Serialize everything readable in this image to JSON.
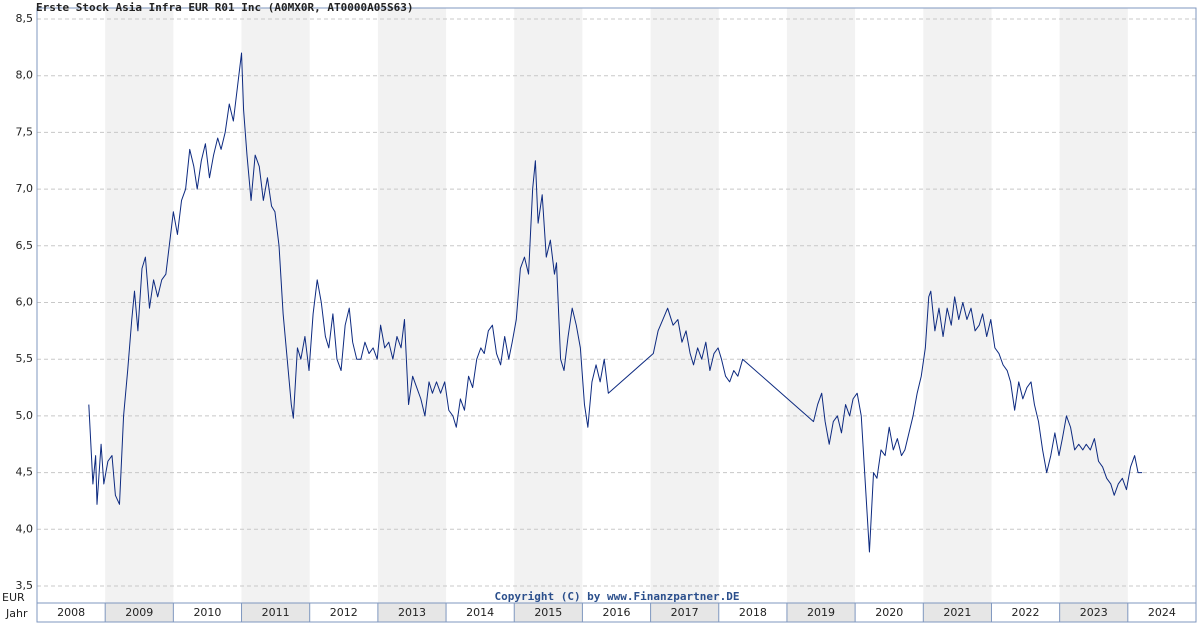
{
  "chart_data": {
    "type": "line",
    "title": "Erste Stock Asia Infra EUR R01 Inc (A0MX0R, AT0000A05S63)",
    "annotation": "Copyright (C) by www.Finanzpartner.DE",
    "ylabel": "EUR",
    "xlabel": "Jahr",
    "color": "#0d2a80",
    "grid": true,
    "ylim": [
      3.5,
      8.5
    ],
    "yticks": [
      {
        "value": 3.5,
        "label": "3,5"
      },
      {
        "value": 4,
        "label": "4,0"
      },
      {
        "value": 4.5,
        "label": "4,5"
      },
      {
        "value": 5,
        "label": "5,0"
      },
      {
        "value": 5.5,
        "label": "5,5"
      },
      {
        "value": 6,
        "label": "6,0"
      },
      {
        "value": 6.5,
        "label": "6,5"
      },
      {
        "value": 7,
        "label": "7,0"
      },
      {
        "value": 7.5,
        "label": "7,5"
      },
      {
        "value": 8,
        "label": "8,0"
      },
      {
        "value": 8.5,
        "label": "8,5"
      }
    ],
    "xlim": [
      2008,
      2025
    ],
    "xticks": [
      2008,
      2009,
      2010,
      2011,
      2012,
      2013,
      2014,
      2015,
      2016,
      2017,
      2018,
      2019,
      2020,
      2021,
      2022,
      2023,
      2024
    ],
    "x": [
      2008.76,
      2008.82,
      2008.86,
      2008.88,
      2008.94,
      2008.98,
      2009.04,
      2009.1,
      2009.15,
      2009.21,
      2009.27,
      2009.33,
      2009.39,
      2009.43,
      2009.48,
      2009.54,
      2009.59,
      2009.65,
      2009.71,
      2009.77,
      2009.83,
      2009.89,
      2009.94,
      2010.0,
      2010.06,
      2010.12,
      2010.18,
      2010.24,
      2010.3,
      2010.35,
      2010.41,
      2010.47,
      2010.53,
      2010.59,
      2010.65,
      2010.7,
      2010.76,
      2010.82,
      2010.88,
      2010.94,
      2011.0,
      2011.03,
      2011.08,
      2011.14,
      2011.2,
      2011.26,
      2011.32,
      2011.38,
      2011.44,
      2011.49,
      2011.55,
      2011.61,
      2011.67,
      2011.73,
      2011.76,
      2011.82,
      2011.87,
      2011.93,
      2011.99,
      2012.05,
      2012.11,
      2012.17,
      2012.23,
      2012.28,
      2012.34,
      2012.4,
      2012.46,
      2012.52,
      2012.58,
      2012.63,
      2012.69,
      2012.75,
      2012.81,
      2012.87,
      2012.93,
      2012.99,
      2013.04,
      2013.1,
      2013.16,
      2013.22,
      2013.28,
      2013.34,
      2013.39,
      2013.45,
      2013.51,
      2013.57,
      2013.63,
      2013.69,
      2013.75,
      2013.8,
      2013.86,
      2013.92,
      2013.98,
      2014.04,
      2014.1,
      2014.15,
      2014.21,
      2014.27,
      2014.33,
      2014.39,
      2014.45,
      2014.51,
      2014.56,
      2014.62,
      2014.68,
      2014.74,
      2014.8,
      2014.86,
      2014.92,
      2014.97,
      2015.03,
      2015.09,
      2015.15,
      2015.21,
      2015.27,
      2015.31,
      2015.35,
      2015.41,
      2015.47,
      2015.53,
      2015.59,
      2015.62,
      2015.68,
      2015.73,
      2015.79,
      2015.85,
      2015.91,
      2015.97,
      2016.03,
      2016.08,
      2016.14,
      2016.2,
      2016.26,
      2016.32,
      2016.38,
      2017.04,
      2017.11,
      2017.18,
      2017.25,
      2017.33,
      2017.4,
      2017.46,
      2017.52,
      2017.58,
      2017.63,
      2017.69,
      2017.75,
      2017.81,
      2017.87,
      2017.93,
      2017.99,
      2018.04,
      2018.1,
      2018.16,
      2018.22,
      2018.28,
      2018.35,
      2019.39,
      2019.45,
      2019.51,
      2019.56,
      2019.62,
      2019.68,
      2019.74,
      2019.8,
      2019.86,
      2019.92,
      2019.97,
      2020.03,
      2020.09,
      2020.15,
      2020.21,
      2020.27,
      2020.32,
      2020.38,
      2020.44,
      2020.5,
      2020.56,
      2020.62,
      2020.68,
      2020.73,
      2020.79,
      2020.85,
      2020.91,
      2020.97,
      2021.03,
      2021.08,
      2021.11,
      2021.17,
      2021.23,
      2021.29,
      2021.35,
      2021.41,
      2021.46,
      2021.52,
      2021.58,
      2021.64,
      2021.7,
      2021.76,
      2021.82,
      2021.87,
      2021.93,
      2021.99,
      2022.05,
      2022.11,
      2022.17,
      2022.23,
      2022.28,
      2022.34,
      2022.4,
      2022.46,
      2022.52,
      2022.58,
      2022.63,
      2022.69,
      2022.75,
      2022.81,
      2022.87,
      2022.93,
      2022.99,
      2023.04,
      2023.1,
      2023.16,
      2023.22,
      2023.28,
      2023.34,
      2023.39,
      2023.45,
      2023.51,
      2023.57,
      2023.63,
      2023.69,
      2023.75,
      2023.8,
      2023.86,
      2023.92,
      2023.98,
      2024.04,
      2024.1,
      2024.15,
      2024.21
    ],
    "values": [
      5.1,
      4.4,
      4.65,
      4.22,
      4.75,
      4.4,
      4.6,
      4.65,
      4.3,
      4.22,
      5.0,
      5.4,
      5.85,
      6.1,
      5.75,
      6.3,
      6.4,
      5.95,
      6.2,
      6.05,
      6.2,
      6.25,
      6.5,
      6.8,
      6.6,
      6.9,
      7.0,
      7.35,
      7.2,
      7.0,
      7.25,
      7.4,
      7.1,
      7.3,
      7.45,
      7.35,
      7.5,
      7.75,
      7.6,
      7.9,
      8.2,
      7.7,
      7.3,
      6.9,
      7.3,
      7.2,
      6.9,
      7.1,
      6.85,
      6.8,
      6.5,
      5.9,
      5.5,
      5.1,
      4.98,
      5.6,
      5.5,
      5.7,
      5.4,
      5.9,
      6.2,
      6.0,
      5.7,
      5.6,
      5.9,
      5.5,
      5.4,
      5.8,
      5.95,
      5.65,
      5.5,
      5.5,
      5.65,
      5.55,
      5.6,
      5.5,
      5.8,
      5.6,
      5.65,
      5.5,
      5.7,
      5.6,
      5.85,
      5.1,
      5.35,
      5.25,
      5.15,
      5.0,
      5.3,
      5.2,
      5.3,
      5.2,
      5.3,
      5.05,
      5.0,
      4.9,
      5.15,
      5.05,
      5.35,
      5.25,
      5.5,
      5.6,
      5.55,
      5.75,
      5.8,
      5.55,
      5.45,
      5.7,
      5.5,
      5.65,
      5.85,
      6.3,
      6.4,
      6.25,
      7.0,
      7.25,
      6.7,
      6.95,
      6.4,
      6.55,
      6.25,
      6.35,
      5.5,
      5.4,
      5.7,
      5.95,
      5.8,
      5.6,
      5.1,
      4.9,
      5.3,
      5.45,
      5.3,
      5.5,
      5.2,
      5.55,
      5.75,
      5.85,
      5.95,
      5.8,
      5.85,
      5.65,
      5.75,
      5.55,
      5.45,
      5.6,
      5.5,
      5.65,
      5.4,
      5.55,
      5.6,
      5.5,
      5.35,
      5.3,
      5.4,
      5.35,
      5.5,
      4.95,
      5.1,
      5.2,
      4.95,
      4.75,
      4.95,
      5.0,
      4.85,
      5.1,
      5.0,
      5.15,
      5.2,
      5.0,
      4.4,
      3.8,
      4.5,
      4.45,
      4.7,
      4.65,
      4.9,
      4.7,
      4.8,
      4.65,
      4.7,
      4.85,
      5.0,
      5.2,
      5.35,
      5.6,
      6.05,
      6.1,
      5.75,
      5.95,
      5.7,
      5.95,
      5.8,
      6.05,
      5.85,
      6.0,
      5.85,
      5.95,
      5.75,
      5.8,
      5.9,
      5.7,
      5.85,
      5.6,
      5.55,
      5.45,
      5.4,
      5.3,
      5.05,
      5.3,
      5.15,
      5.25,
      5.3,
      5.1,
      4.95,
      4.7,
      4.5,
      4.65,
      4.85,
      4.65,
      4.8,
      5.0,
      4.9,
      4.7,
      4.75,
      4.7,
      4.75,
      4.7,
      4.8,
      4.6,
      4.55,
      4.45,
      4.4,
      4.3,
      4.4,
      4.45,
      4.35,
      4.55,
      4.65,
      4.5,
      4.5
    ]
  }
}
